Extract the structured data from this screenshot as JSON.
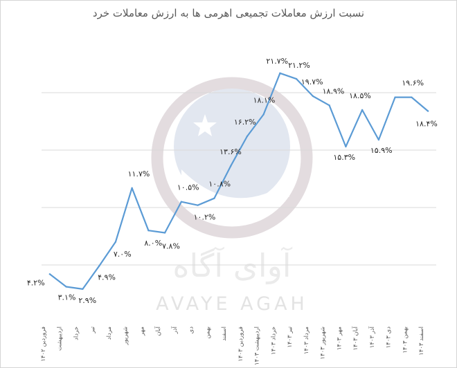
{
  "chart_data": {
    "type": "line",
    "title": "نسبت ارزش معاملات تجمیعی اهرمی ها به ارزش معاملات خرد",
    "xlabel": "",
    "ylabel": "",
    "ylim": [
      0,
      25
    ],
    "grid": "horizontal",
    "colors": {
      "line": "#5b9bd5",
      "grid": "#d9d9d9",
      "label": "#262626",
      "axis_text": "#595959"
    },
    "categories": [
      "فروردین ۱۴۰۲",
      "اردیبهشت",
      "خرداد",
      "تیر",
      "مرداد",
      "شهریور",
      "مهر",
      "آبان",
      "آذر",
      "دی",
      "بهمن",
      "اسفند",
      "فروردین ۱۴۰۳",
      "اردیبهشت ۱۴۰۳",
      "خرداد ۱۴۰۳",
      "تیر ۱۴۰۳",
      "مرداد ۱۴۰۳",
      "شهریور ۱۴۰۳",
      "مهر ۱۴۰۳",
      "آبان ۱۴۰۳",
      "آذر ۱۴۰۳",
      "دی ۱۴۰۳",
      "بهمن ۱۴۰۳",
      "اسفند ۱۴۰۳"
    ],
    "values": [
      4.2,
      3.1,
      2.9,
      4.9,
      7.0,
      11.7,
      8.0,
      7.8,
      10.5,
      10.2,
      10.8,
      13.6,
      16.2,
      18.1,
      21.7,
      21.2,
      19.7,
      18.9,
      15.3,
      18.5,
      15.9,
      19.6,
      19.6,
      18.4
    ],
    "labels": [
      "۴.۲%",
      "۳.۱%",
      "۲.۹%",
      "۴.۹%",
      "۷.۰%",
      "۱۱.۷%",
      "۸.۰%",
      "۷.۸%",
      "۱۰.۵%",
      "۱۰.۲%",
      "۱۰.۸%",
      "۱۳.۶%",
      "۱۶.۲%",
      "۱۸.۱%",
      "۲۱.۷%",
      "۲۱.۲%",
      "۱۹.۷%",
      "۱۸.۹%",
      "۱۵.۳%",
      "۱۸.۵%",
      "۱۵.۹%",
      "",
      "۱۹.۶%",
      "۱۸.۴%"
    ]
  },
  "watermark": {
    "text_fa": "آوای آگاه",
    "text_en": "AVAYE AGAH",
    "ring_color": "#e3dcdf",
    "globe_color": "#e2e7f0"
  }
}
